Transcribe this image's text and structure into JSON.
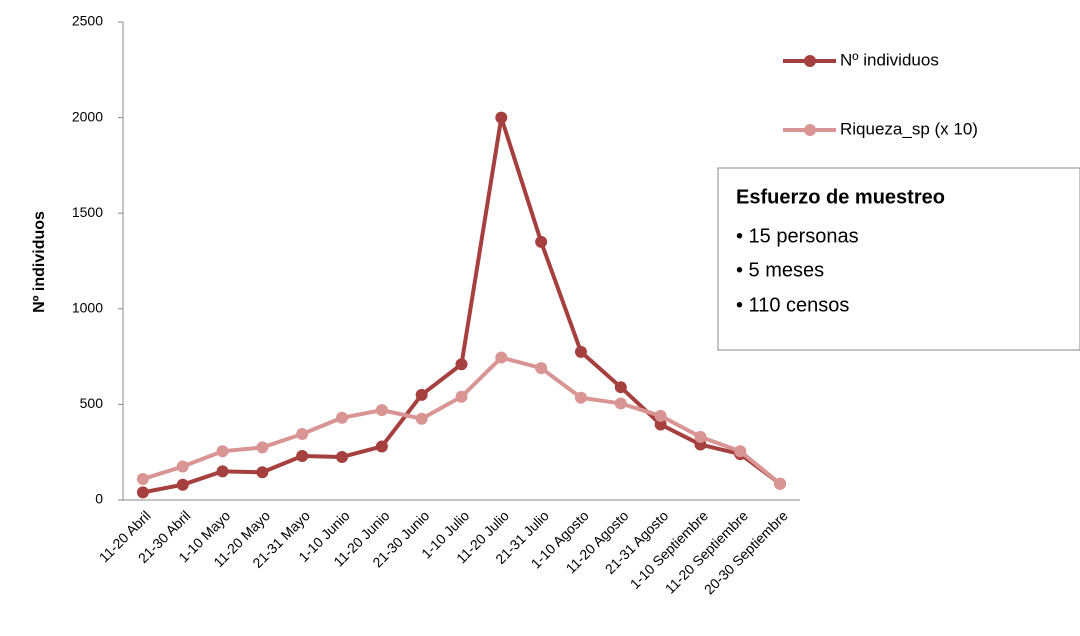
{
  "chart_data": {
    "type": "line",
    "y_label": "Nº individuos",
    "categories": [
      "11-20 Abril",
      "21-30 Abril",
      "1-10 Mayo",
      "11-20 Mayo",
      "21-31 Mayo",
      "1-10 Junio",
      "11-20 Junio",
      "21-30 Junio",
      "1-10 Julio",
      "11-20 Julio",
      "21-31 Julio",
      "1-10 Agosto",
      "11-20 Agosto",
      "21-31 Agosto",
      "1-10 Septiembre",
      "11-20 Septiembre",
      "20-30 Septiembre"
    ],
    "series": [
      {
        "name": "Nº individuos",
        "color": "#a5403e",
        "values": [
          40,
          80,
          150,
          145,
          230,
          225,
          280,
          550,
          710,
          2000,
          1350,
          775,
          590,
          395,
          290,
          240,
          85
        ]
      },
      {
        "name": "Riqueza_sp (x 10)",
        "color": "#d99593",
        "values": [
          110,
          175,
          255,
          275,
          345,
          430,
          470,
          425,
          540,
          745,
          690,
          535,
          505,
          440,
          330,
          255,
          85
        ]
      }
    ],
    "ylim": [
      0,
      2500
    ],
    "yticks": [
      0,
      500,
      1000,
      1500,
      2000,
      2500
    ],
    "grid": false,
    "legend": "top-right",
    "annotation": {
      "title": "Esfuerzo de muestreo",
      "items": [
        "• 15 personas",
        "• 5 meses",
        "• 110 censos"
      ]
    }
  }
}
